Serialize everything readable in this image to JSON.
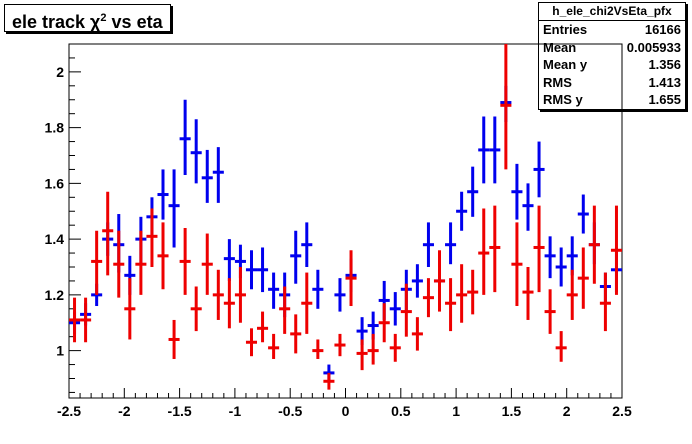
{
  "title_main": "ele track χ",
  "title_sup": "2",
  "title_rest": " vs eta",
  "stats": {
    "name": "h_ele_chi2VsEta_pfx",
    "rows": [
      {
        "label": "Entries",
        "value": "16166"
      },
      {
        "label": "Mean",
        "value": "0.005933"
      },
      {
        "label": "Mean y",
        "value": "1.356"
      },
      {
        "label": "RMS",
        "value": "1.413"
      },
      {
        "label": "RMS y",
        "value": "1.655"
      }
    ]
  },
  "colors": {
    "series_blue": "#0000ee",
    "series_red": "#ee0000",
    "axis": "#000000"
  },
  "chart_data": {
    "type": "scatter",
    "title": "ele track χ2 vs eta",
    "xlim": [
      -2.5,
      2.5
    ],
    "ylim": [
      0.83,
      2.1
    ],
    "xticks": [
      "-2.5",
      "-2",
      "-1.5",
      "-1",
      "-0.5",
      "0",
      "0.5",
      "1",
      "1.5",
      "2",
      "2.5"
    ],
    "yticks": [
      "1",
      "1.2",
      "1.4",
      "1.6",
      "1.8",
      "2"
    ],
    "bin_width": 0.1,
    "series": [
      {
        "color": "blue",
        "points": [
          {
            "x": -2.45,
            "y": 1.1,
            "lo": 1.06,
            "hi": 1.14
          },
          {
            "x": -2.35,
            "y": 1.13,
            "lo": 1.09,
            "hi": 1.17
          },
          {
            "x": -2.25,
            "y": 1.2,
            "lo": 1.16,
            "hi": 1.24
          },
          {
            "x": -2.15,
            "y": 1.4,
            "lo": 1.34,
            "hi": 1.46
          },
          {
            "x": -2.05,
            "y": 1.38,
            "lo": 1.28,
            "hi": 1.49
          },
          {
            "x": -1.95,
            "y": 1.27,
            "lo": 1.2,
            "hi": 1.34
          },
          {
            "x": -1.85,
            "y": 1.4,
            "lo": 1.31,
            "hi": 1.48
          },
          {
            "x": -1.75,
            "y": 1.48,
            "lo": 1.41,
            "hi": 1.55
          },
          {
            "x": -1.65,
            "y": 1.56,
            "lo": 1.47,
            "hi": 1.65
          },
          {
            "x": -1.55,
            "y": 1.52,
            "lo": 1.37,
            "hi": 1.65
          },
          {
            "x": -1.45,
            "y": 1.76,
            "lo": 1.63,
            "hi": 1.9
          },
          {
            "x": -1.35,
            "y": 1.71,
            "lo": 1.6,
            "hi": 1.83
          },
          {
            "x": -1.25,
            "y": 1.62,
            "lo": 1.53,
            "hi": 1.72
          },
          {
            "x": -1.15,
            "y": 1.64,
            "lo": 1.53,
            "hi": 1.73
          },
          {
            "x": -1.05,
            "y": 1.33,
            "lo": 1.25,
            "hi": 1.4
          },
          {
            "x": -0.95,
            "y": 1.32,
            "lo": 1.26,
            "hi": 1.38
          },
          {
            "x": -0.85,
            "y": 1.29,
            "lo": 1.22,
            "hi": 1.36
          },
          {
            "x": -0.75,
            "y": 1.29,
            "lo": 1.21,
            "hi": 1.37
          },
          {
            "x": -0.65,
            "y": 1.22,
            "lo": 1.15,
            "hi": 1.28
          },
          {
            "x": -0.55,
            "y": 1.2,
            "lo": 1.12,
            "hi": 1.28
          },
          {
            "x": -0.45,
            "y": 1.34,
            "lo": 1.24,
            "hi": 1.43
          },
          {
            "x": -0.35,
            "y": 1.38,
            "lo": 1.3,
            "hi": 1.46
          },
          {
            "x": -0.25,
            "y": 1.22,
            "lo": 1.15,
            "hi": 1.29
          },
          {
            "x": -0.15,
            "y": 0.92,
            "lo": 0.89,
            "hi": 0.95
          },
          {
            "x": -0.05,
            "y": 1.2,
            "lo": 1.14,
            "hi": 1.26
          },
          {
            "x": 0.05,
            "y": 1.27,
            "lo": 1.21,
            "hi": 1.33
          },
          {
            "x": 0.15,
            "y": 1.07,
            "lo": 1.02,
            "hi": 1.12
          },
          {
            "x": 0.25,
            "y": 1.09,
            "lo": 1.04,
            "hi": 1.14
          },
          {
            "x": 0.35,
            "y": 1.18,
            "lo": 1.11,
            "hi": 1.25
          },
          {
            "x": 0.45,
            "y": 1.15,
            "lo": 1.09,
            "hi": 1.21
          },
          {
            "x": 0.55,
            "y": 1.22,
            "lo": 1.14,
            "hi": 1.29
          },
          {
            "x": 0.65,
            "y": 1.25,
            "lo": 1.19,
            "hi": 1.31
          },
          {
            "x": 0.75,
            "y": 1.38,
            "lo": 1.3,
            "hi": 1.46
          },
          {
            "x": 0.85,
            "y": 1.25,
            "lo": 1.19,
            "hi": 1.33
          },
          {
            "x": 0.95,
            "y": 1.38,
            "lo": 1.31,
            "hi": 1.46
          },
          {
            "x": 1.05,
            "y": 1.5,
            "lo": 1.43,
            "hi": 1.57
          },
          {
            "x": 1.15,
            "y": 1.57,
            "lo": 1.48,
            "hi": 1.66
          },
          {
            "x": 1.25,
            "y": 1.72,
            "lo": 1.6,
            "hi": 1.84
          },
          {
            "x": 1.35,
            "y": 1.72,
            "lo": 1.6,
            "hi": 1.84
          },
          {
            "x": 1.45,
            "y": 1.89,
            "lo": 1.82,
            "hi": 1.95
          },
          {
            "x": 1.55,
            "y": 1.57,
            "lo": 1.47,
            "hi": 1.67
          },
          {
            "x": 1.65,
            "y": 1.52,
            "lo": 1.43,
            "hi": 1.6
          },
          {
            "x": 1.75,
            "y": 1.65,
            "lo": 1.55,
            "hi": 1.75
          },
          {
            "x": 1.85,
            "y": 1.34,
            "lo": 1.26,
            "hi": 1.41
          },
          {
            "x": 1.95,
            "y": 1.3,
            "lo": 1.23,
            "hi": 1.37
          },
          {
            "x": 2.05,
            "y": 1.34,
            "lo": 1.27,
            "hi": 1.41
          },
          {
            "x": 2.15,
            "y": 1.49,
            "lo": 1.42,
            "hi": 1.56
          },
          {
            "x": 2.25,
            "y": 1.38,
            "lo": 1.31,
            "hi": 1.46
          },
          {
            "x": 2.35,
            "y": 1.23,
            "lo": 1.17,
            "hi": 1.28
          },
          {
            "x": 2.45,
            "y": 1.29,
            "lo": 1.21,
            "hi": 1.37
          }
        ]
      },
      {
        "color": "red",
        "points": [
          {
            "x": -2.45,
            "y": 1.11,
            "lo": 1.03,
            "hi": 1.19
          },
          {
            "x": -2.35,
            "y": 1.11,
            "lo": 1.03,
            "hi": 1.19
          },
          {
            "x": -2.25,
            "y": 1.32,
            "lo": 1.2,
            "hi": 1.43
          },
          {
            "x": -2.15,
            "y": 1.43,
            "lo": 1.27,
            "hi": 1.57
          },
          {
            "x": -2.05,
            "y": 1.31,
            "lo": 1.19,
            "hi": 1.43
          },
          {
            "x": -1.95,
            "y": 1.15,
            "lo": 1.04,
            "hi": 1.26
          },
          {
            "x": -1.85,
            "y": 1.31,
            "lo": 1.2,
            "hi": 1.43
          },
          {
            "x": -1.75,
            "y": 1.41,
            "lo": 1.3,
            "hi": 1.51
          },
          {
            "x": -1.65,
            "y": 1.34,
            "lo": 1.22,
            "hi": 1.46
          },
          {
            "x": -1.55,
            "y": 1.04,
            "lo": 0.97,
            "hi": 1.11
          },
          {
            "x": -1.45,
            "y": 1.32,
            "lo": 1.2,
            "hi": 1.44
          },
          {
            "x": -1.35,
            "y": 1.15,
            "lo": 1.07,
            "hi": 1.23
          },
          {
            "x": -1.25,
            "y": 1.31,
            "lo": 1.2,
            "hi": 1.42
          },
          {
            "x": -1.15,
            "y": 1.2,
            "lo": 1.11,
            "hi": 1.29
          },
          {
            "x": -1.05,
            "y": 1.17,
            "lo": 1.08,
            "hi": 1.26
          },
          {
            "x": -0.95,
            "y": 1.2,
            "lo": 1.1,
            "hi": 1.3
          },
          {
            "x": -0.85,
            "y": 1.03,
            "lo": 0.98,
            "hi": 1.08
          },
          {
            "x": -0.75,
            "y": 1.08,
            "lo": 1.03,
            "hi": 1.14
          },
          {
            "x": -0.65,
            "y": 1.01,
            "lo": 0.97,
            "hi": 1.06
          },
          {
            "x": -0.55,
            "y": 1.15,
            "lo": 1.06,
            "hi": 1.23
          },
          {
            "x": -0.45,
            "y": 1.06,
            "lo": 0.99,
            "hi": 1.13
          },
          {
            "x": -0.35,
            "y": 1.17,
            "lo": 1.06,
            "hi": 1.28
          },
          {
            "x": -0.25,
            "y": 1.0,
            "lo": 0.97,
            "hi": 1.04
          },
          {
            "x": -0.15,
            "y": 0.89,
            "lo": 0.86,
            "hi": 0.92
          },
          {
            "x": -0.05,
            "y": 1.02,
            "lo": 0.98,
            "hi": 1.06
          },
          {
            "x": 0.05,
            "y": 1.26,
            "lo": 1.16,
            "hi": 1.36
          },
          {
            "x": 0.15,
            "y": 0.99,
            "lo": 0.93,
            "hi": 1.04
          },
          {
            "x": 0.25,
            "y": 1.0,
            "lo": 0.95,
            "hi": 1.06
          },
          {
            "x": 0.35,
            "y": 1.1,
            "lo": 1.03,
            "hi": 1.17
          },
          {
            "x": 0.45,
            "y": 1.01,
            "lo": 0.96,
            "hi": 1.06
          },
          {
            "x": 0.55,
            "y": 1.14,
            "lo": 1.05,
            "hi": 1.24
          },
          {
            "x": 0.65,
            "y": 1.06,
            "lo": 1.0,
            "hi": 1.12
          },
          {
            "x": 0.75,
            "y": 1.19,
            "lo": 1.12,
            "hi": 1.26
          },
          {
            "x": 0.85,
            "y": 1.25,
            "lo": 1.14,
            "hi": 1.36
          },
          {
            "x": 0.95,
            "y": 1.17,
            "lo": 1.07,
            "hi": 1.26
          },
          {
            "x": 1.05,
            "y": 1.2,
            "lo": 1.1,
            "hi": 1.31
          },
          {
            "x": 1.15,
            "y": 1.21,
            "lo": 1.13,
            "hi": 1.29
          },
          {
            "x": 1.25,
            "y": 1.35,
            "lo": 1.2,
            "hi": 1.51
          },
          {
            "x": 1.35,
            "y": 1.37,
            "lo": 1.21,
            "hi": 1.52
          },
          {
            "x": 1.45,
            "y": 1.88,
            "lo": 1.65,
            "hi": 2.11
          },
          {
            "x": 1.55,
            "y": 1.31,
            "lo": 1.16,
            "hi": 1.46
          },
          {
            "x": 1.65,
            "y": 1.21,
            "lo": 1.11,
            "hi": 1.3
          },
          {
            "x": 1.75,
            "y": 1.37,
            "lo": 1.21,
            "hi": 1.52
          },
          {
            "x": 1.85,
            "y": 1.14,
            "lo": 1.06,
            "hi": 1.22
          },
          {
            "x": 1.95,
            "y": 1.01,
            "lo": 0.96,
            "hi": 1.07
          },
          {
            "x": 2.05,
            "y": 1.2,
            "lo": 1.11,
            "hi": 1.29
          },
          {
            "x": 2.15,
            "y": 1.26,
            "lo": 1.15,
            "hi": 1.37
          },
          {
            "x": 2.25,
            "y": 1.38,
            "lo": 1.24,
            "hi": 1.52
          },
          {
            "x": 2.35,
            "y": 1.17,
            "lo": 1.07,
            "hi": 1.28
          },
          {
            "x": 2.45,
            "y": 1.36,
            "lo": 1.2,
            "hi": 1.52
          }
        ]
      }
    ]
  }
}
